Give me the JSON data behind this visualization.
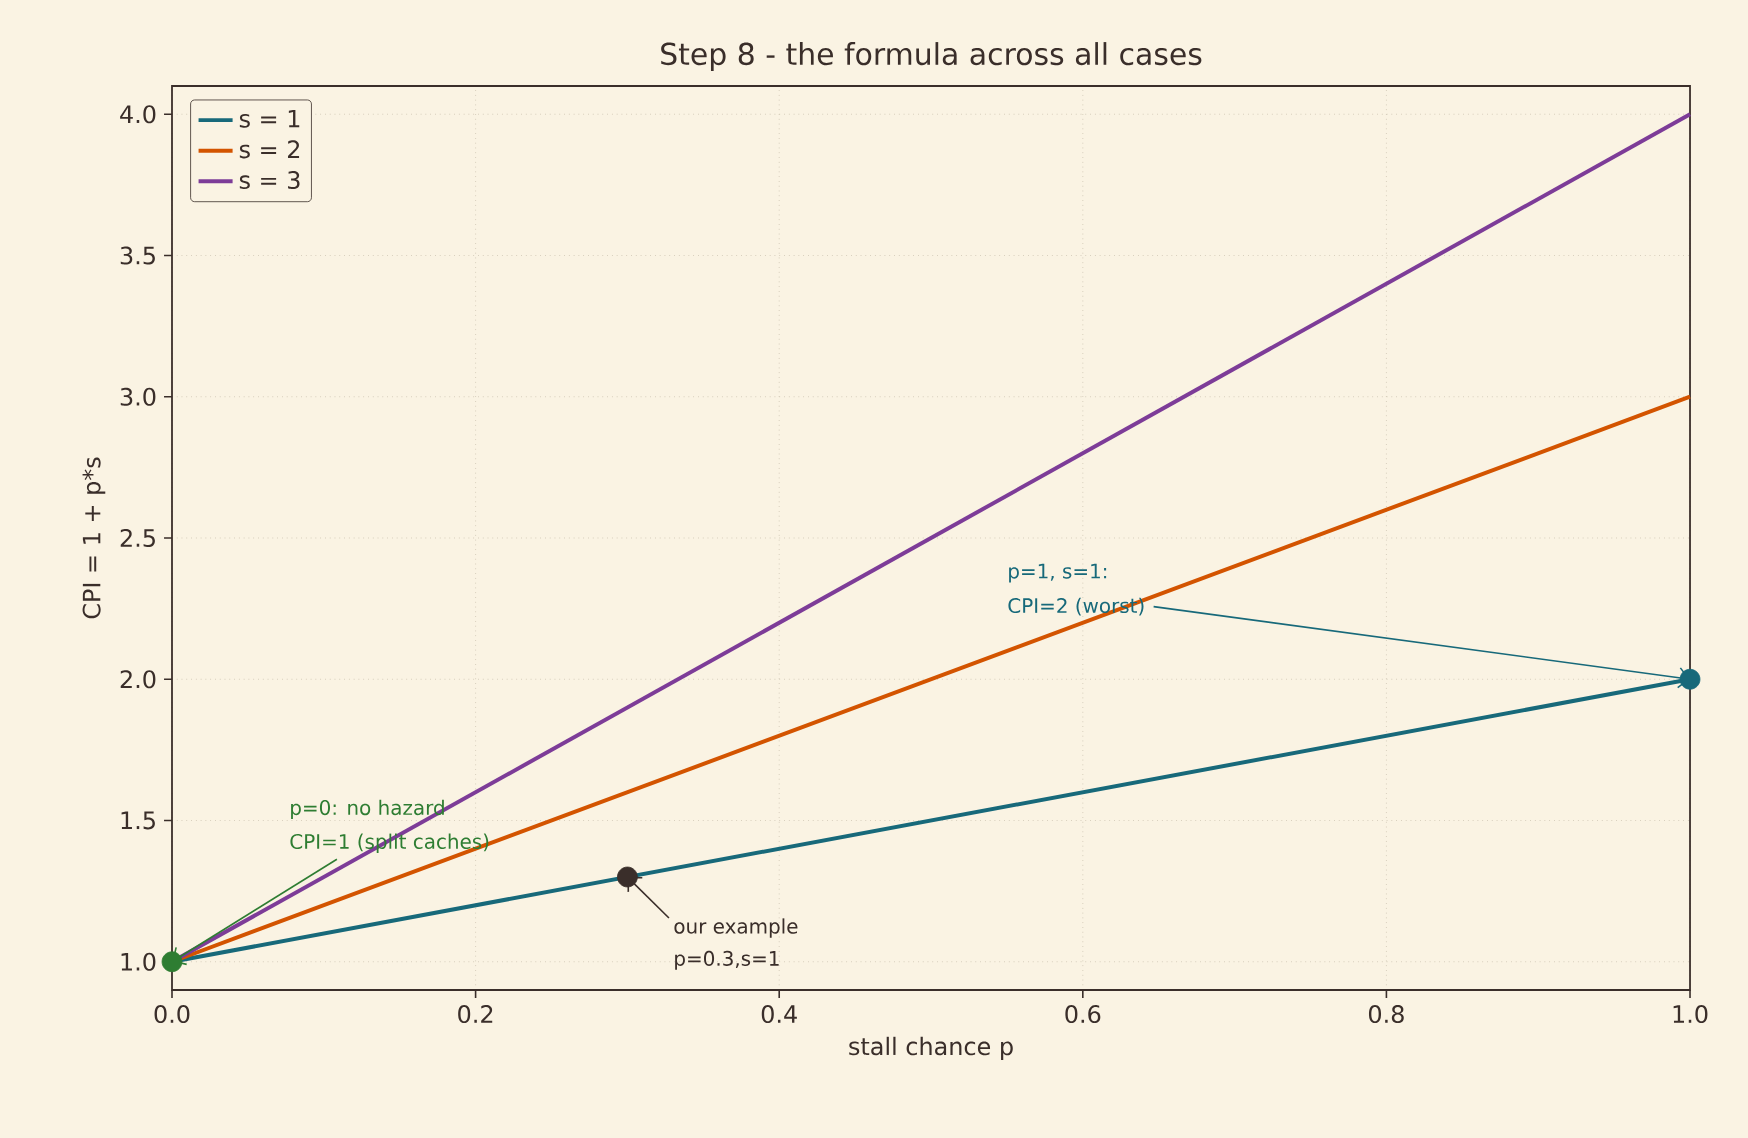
{
  "chart_data": {
    "type": "line",
    "title": "Step 8 - the formula across all cases",
    "xlabel": "stall chance p",
    "ylabel": "CPI = 1 + p*s",
    "x": [
      0,
      1
    ],
    "series": [
      {
        "name": "s = 1",
        "color": "#17697a",
        "values": [
          1,
          2
        ]
      },
      {
        "name": "s = 2",
        "color": "#d35400",
        "values": [
          1,
          3
        ]
      },
      {
        "name": "s = 3",
        "color": "#7d3c98",
        "values": [
          1,
          4
        ]
      },
      {
        "type": "scatter",
        "color": "#2e7d32",
        "x": [
          0
        ],
        "values": [
          1
        ]
      },
      {
        "type": "scatter",
        "color": "#3a2e2a",
        "x": [
          0.3
        ],
        "values": [
          1.3
        ]
      },
      {
        "type": "scatter",
        "color": "#17697a",
        "x": [
          1
        ],
        "values": [
          2
        ]
      }
    ],
    "annotations": [
      "p=0: no hazard",
      {
        "text": "CPI=1 (split caches)",
        "x": 0,
        "y": 1
      },
      {
        "text": "our example",
        "x": 0.3,
        "y": 1.3
      },
      "p=0.3,s=1",
      "p=1, s=1:",
      {
        "text": "CPI=2 (worst)",
        "x": 1,
        "y": 2
      }
    ],
    "xlim": [
      0,
      1
    ],
    "ylim": [
      0.9,
      4.1
    ],
    "xticks": [
      {
        "value": 0,
        "label": "0.0"
      },
      0.2,
      0.4,
      0.6,
      0.8,
      {
        "value": 1,
        "label": "1.0"
      }
    ],
    "yticks": [
      {
        "value": 1,
        "label": "1.0"
      },
      1.5,
      {
        "value": 2,
        "label": "2.0"
      },
      2.5,
      {
        "value": 3,
        "label": "3.0"
      },
      3.5,
      {
        "value": 4,
        "label": "4.0"
      }
    ],
    "grid": true,
    "legend": "top left",
    "line_style": "solid"
  }
}
